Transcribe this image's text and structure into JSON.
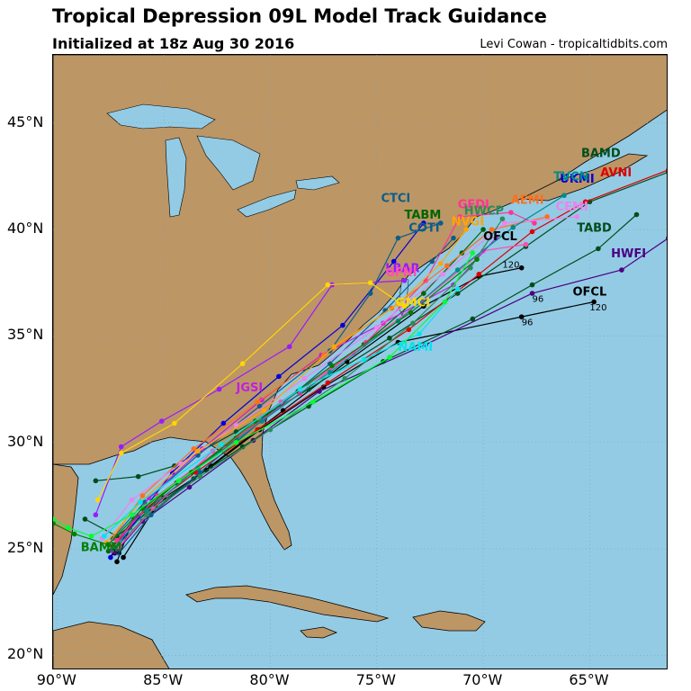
{
  "header": {
    "title": "Tropical Depression 09L Model Track Guidance",
    "subtitle": "Initialized at 18z Aug 30 2016",
    "credit": "Levi Cowan - tropicaltidbits.com"
  },
  "map": {
    "extent": {
      "lon_min": -90.2,
      "lon_max": -61.3,
      "lat_min": 19.3,
      "lat_max": 48.2
    },
    "colors": {
      "ocean": "#93cbe5",
      "land": "#bc9665",
      "lakes": "#93cbe5",
      "grid": "#7f9fb0"
    },
    "lat_ticks": [
      {
        "value": 45,
        "label": "45°N"
      },
      {
        "value": 40,
        "label": "40°N"
      },
      {
        "value": 35,
        "label": "35°N"
      },
      {
        "value": 30,
        "label": "30°N"
      },
      {
        "value": 25,
        "label": "25°N"
      },
      {
        "value": 20,
        "label": "20°N"
      }
    ],
    "lon_ticks": [
      {
        "value": -90,
        "label": "90°W"
      },
      {
        "value": -85,
        "label": "85°W"
      },
      {
        "value": -80,
        "label": "80°W"
      },
      {
        "value": -75,
        "label": "75°W"
      },
      {
        "value": -70,
        "label": "70°W"
      },
      {
        "value": -65,
        "label": "65°W"
      }
    ],
    "tracks": [
      {
        "name": "OFCL",
        "color": "#000000",
        "label_pos": [
          -65.8,
          36.9
        ],
        "points": [
          [
            -87.2,
            24.4
          ],
          [
            -86.6,
            26.0
          ],
          [
            -85.0,
            27.4
          ],
          [
            -83.0,
            28.7
          ],
          [
            -80.5,
            30.6
          ],
          [
            -77.5,
            32.6
          ],
          [
            -74.0,
            34.7
          ],
          [
            -68.2,
            35.9
          ],
          [
            -64.8,
            36.6
          ]
        ],
        "hours": [
          {
            "h": "24",
            "pos": [
              -87.5,
              24.7
            ]
          },
          {
            "h": "96",
            "pos": [
              -68.2,
              35.5
            ]
          },
          {
            "h": "120",
            "pos": [
              -65.0,
              36.2
            ]
          }
        ]
      },
      {
        "name": "OFCL",
        "color": "#000000",
        "label_pos": [
          -70.0,
          39.5
        ],
        "points": [
          [
            -86.9,
            24.6
          ],
          [
            -85.5,
            26.8
          ],
          [
            -82.8,
            28.9
          ],
          [
            -79.4,
            31.5
          ],
          [
            -76.4,
            33.8
          ],
          [
            -72.8,
            36.4
          ],
          [
            -70.2,
            37.8
          ],
          [
            -68.2,
            38.2
          ]
        ],
        "hours": [
          {
            "h": "120",
            "pos": [
              -69.1,
              38.2
            ]
          }
        ]
      },
      {
        "name": "HWFI",
        "color": "#4b0082",
        "label_pos": [
          -64.0,
          38.7
        ],
        "points": [
          [
            -87.3,
            24.8
          ],
          [
            -86.0,
            26.3
          ],
          [
            -83.8,
            27.9
          ],
          [
            -80.8,
            30.1
          ],
          [
            -77.7,
            32.4
          ],
          [
            -72.7,
            34.6
          ],
          [
            -67.7,
            37.0
          ],
          [
            -63.5,
            38.1
          ],
          [
            -61.3,
            39.6
          ]
        ],
        "hours": [
          {
            "h": "96",
            "pos": [
              -67.7,
              36.6
            ]
          }
        ]
      },
      {
        "name": "TABD",
        "color": "#004d1a",
        "label_pos": [
          -65.6,
          39.9
        ],
        "points": [
          [
            -88.7,
            26.4
          ],
          [
            -87.2,
            25.6
          ],
          [
            -85.4,
            27.0
          ],
          [
            -83.6,
            28.3
          ],
          [
            -81.3,
            29.8
          ],
          [
            -78.2,
            31.7
          ],
          [
            -74.7,
            33.8
          ],
          [
            -70.5,
            35.8
          ],
          [
            -67.7,
            37.4
          ],
          [
            -64.6,
            39.1
          ],
          [
            -62.8,
            40.7
          ]
        ]
      },
      {
        "name": "BAMD",
        "color": "#004d1a",
        "label_pos": [
          -65.4,
          43.4
        ],
        "points": [
          [
            -88.2,
            28.2
          ],
          [
            -86.2,
            28.4
          ],
          [
            -84.5,
            28.9
          ],
          [
            -81.6,
            30.5
          ],
          [
            -78.2,
            32.5
          ],
          [
            -74.4,
            34.9
          ],
          [
            -71.2,
            37.0
          ],
          [
            -68.0,
            39.2
          ],
          [
            -65.0,
            41.3
          ],
          [
            -61.3,
            42.7
          ]
        ]
      },
      {
        "name": "AVNI",
        "color": "#dd0000",
        "label_pos": [
          -64.5,
          42.5
        ],
        "points": [
          [
            -87.4,
            25.1
          ],
          [
            -85.9,
            26.8
          ],
          [
            -83.5,
            28.6
          ],
          [
            -80.6,
            30.6
          ],
          [
            -77.3,
            32.8
          ],
          [
            -73.5,
            35.3
          ],
          [
            -70.2,
            37.9
          ],
          [
            -67.7,
            39.9
          ],
          [
            -65.2,
            41.3
          ],
          [
            -61.3,
            42.8
          ]
        ]
      },
      {
        "name": "UKMI",
        "color": "#0000dd",
        "label_pos": [
          -66.4,
          42.2
        ],
        "points": [
          [
            -87.5,
            24.6
          ],
          [
            -86.2,
            26.5
          ],
          [
            -84.6,
            28.6
          ],
          [
            -82.2,
            30.9
          ],
          [
            -79.6,
            33.1
          ],
          [
            -76.6,
            35.5
          ],
          [
            -74.2,
            38.5
          ],
          [
            -72.8,
            40.3
          ]
        ]
      },
      {
        "name": "CTCI",
        "color": "#0b5d8a",
        "label_pos": [
          -74.8,
          41.3
        ],
        "points": [
          [
            -87.4,
            25.5
          ],
          [
            -85.9,
            27.2
          ],
          [
            -83.4,
            29.4
          ],
          [
            -80.5,
            31.7
          ],
          [
            -77.2,
            34.3
          ],
          [
            -75.3,
            37.0
          ],
          [
            -74.0,
            39.6
          ],
          [
            -72.0,
            40.3
          ]
        ]
      },
      {
        "name": "TABM",
        "color": "#006400",
        "label_pos": [
          -73.7,
          40.5
        ],
        "points": [
          [
            -87.6,
            24.9
          ],
          [
            -86.4,
            26.4
          ],
          [
            -84.4,
            28.1
          ],
          [
            -81.6,
            30.2
          ],
          [
            -78.7,
            32.4
          ],
          [
            -75.6,
            34.6
          ],
          [
            -72.8,
            37.0
          ],
          [
            -71.0,
            38.9
          ],
          [
            -70.0,
            40.0
          ]
        ]
      },
      {
        "name": "COTI",
        "color": "#0b5d8a",
        "label_pos": [
          -73.5,
          39.9
        ],
        "points": [
          [
            -87.1,
            24.8
          ],
          [
            -85.6,
            26.6
          ],
          [
            -83.3,
            28.6
          ],
          [
            -80.3,
            31.1
          ],
          [
            -77.2,
            33.7
          ],
          [
            -74.6,
            36.2
          ],
          [
            -72.4,
            38.5
          ],
          [
            -71.4,
            39.6
          ]
        ]
      },
      {
        "name": "LBAR",
        "color": "#9a1aff",
        "label_pos": [
          -74.6,
          38.0
        ],
        "points": [
          [
            -88.2,
            26.6
          ],
          [
            -87.0,
            29.8
          ],
          [
            -85.1,
            31.0
          ],
          [
            -82.4,
            32.5
          ],
          [
            -79.1,
            34.5
          ],
          [
            -77.1,
            37.4
          ],
          [
            -73.7,
            37.6
          ]
        ]
      },
      {
        "name": "GFNI",
        "color": "#ff4fb0",
        "label_pos": [
          -74.6,
          37.8
        ],
        "points": [
          [
            -87.1,
            25.1
          ],
          [
            -85.5,
            26.9
          ],
          [
            -82.7,
            29.6
          ],
          [
            -79.5,
            31.9
          ],
          [
            -76.1,
            34.2
          ],
          [
            -72.8,
            36.7
          ],
          [
            -70.0,
            39.0
          ],
          [
            -68.0,
            39.3
          ]
        ]
      },
      {
        "name": "JGSI",
        "color": "#c020e0",
        "label_pos": [
          -81.6,
          32.4
        ],
        "points": [
          [
            -87.4,
            24.9
          ],
          [
            -85.7,
            27.4
          ],
          [
            -83.2,
            29.7
          ],
          [
            -80.4,
            32.0
          ],
          [
            -77.6,
            34.1
          ],
          [
            -74.7,
            35.6
          ],
          [
            -71.4,
            37.4
          ],
          [
            -69.4,
            39.6
          ]
        ]
      },
      {
        "name": "GFDI",
        "color": "#ff3399",
        "label_pos": [
          -71.2,
          41.0
        ],
        "points": [
          [
            -87.2,
            25.4
          ],
          [
            -85.3,
            27.5
          ],
          [
            -82.2,
            29.8
          ],
          [
            -78.6,
            32.3
          ],
          [
            -75.5,
            34.7
          ],
          [
            -72.7,
            37.6
          ],
          [
            -71.1,
            40.6
          ],
          [
            -68.7,
            40.8
          ],
          [
            -67.6,
            40.3
          ]
        ]
      },
      {
        "name": "AEMI",
        "color": "#ff6f1a",
        "label_pos": [
          -68.7,
          41.2
        ],
        "points": [
          [
            -87.6,
            25.2
          ],
          [
            -86.0,
            27.5
          ],
          [
            -83.6,
            29.7
          ],
          [
            -80.6,
            31.9
          ],
          [
            -77.5,
            34.1
          ],
          [
            -74.3,
            36.3
          ],
          [
            -71.7,
            38.3
          ],
          [
            -69.6,
            40.0
          ],
          [
            -67.0,
            40.6
          ]
        ]
      },
      {
        "name": "CEMI",
        "color": "#ee82ee",
        "label_pos": [
          -66.6,
          40.9
        ],
        "points": [
          [
            -87.9,
            25.5
          ],
          [
            -86.5,
            27.3
          ],
          [
            -84.2,
            29.0
          ],
          [
            -81.6,
            30.8
          ],
          [
            -78.4,
            33.0
          ],
          [
            -75.0,
            35.4
          ],
          [
            -71.9,
            37.9
          ],
          [
            -69.0,
            40.3
          ],
          [
            -65.6,
            40.6
          ]
        ]
      },
      {
        "name": "NVGI",
        "color": "#ffa500",
        "label_pos": [
          -71.5,
          40.2
        ],
        "points": [
          [
            -87.7,
            25.3
          ],
          [
            -86.1,
            27.2
          ],
          [
            -83.4,
            29.6
          ],
          [
            -80.3,
            31.5
          ],
          [
            -77.0,
            34.5
          ],
          [
            -74.0,
            36.5
          ],
          [
            -72.0,
            38.4
          ],
          [
            -70.8,
            40.0
          ]
        ]
      },
      {
        "name": "HWCP",
        "color": "#2e8b57",
        "label_pos": [
          -70.9,
          40.7
        ],
        "points": [
          [
            -87.3,
            25.0
          ],
          [
            -85.8,
            26.6
          ],
          [
            -83.3,
            28.4
          ],
          [
            -80.0,
            30.6
          ],
          [
            -76.5,
            33.0
          ],
          [
            -73.3,
            35.6
          ],
          [
            -70.6,
            38.2
          ],
          [
            -69.1,
            40.5
          ]
        ]
      },
      {
        "name": "GMCI",
        "color": "#ffd700",
        "label_pos": [
          -74.1,
          36.4
        ],
        "points": [
          [
            -88.1,
            27.3
          ],
          [
            -87.0,
            29.5
          ],
          [
            -84.5,
            30.9
          ],
          [
            -81.3,
            33.7
          ],
          [
            -77.3,
            37.4
          ],
          [
            -75.3,
            37.5
          ],
          [
            -73.7,
            36.4
          ]
        ]
      },
      {
        "name": "TVCN",
        "color": "#008b8b",
        "label_pos": [
          -66.7,
          42.3
        ],
        "points": [
          [
            -87.4,
            25.0
          ],
          [
            -85.8,
            26.8
          ],
          [
            -83.4,
            28.8
          ],
          [
            -80.4,
            31.0
          ],
          [
            -77.2,
            33.3
          ],
          [
            -74.0,
            35.7
          ],
          [
            -71.2,
            38.1
          ],
          [
            -68.6,
            40.1
          ],
          [
            -66.2,
            41.6
          ]
        ]
      },
      {
        "name": "BAMM",
        "color": "#008000",
        "label_pos": [
          -88.9,
          24.9
        ],
        "points": [
          [
            -90.2,
            26.2
          ],
          [
            -89.2,
            25.7
          ],
          [
            -87.6,
            25.2
          ],
          [
            -86.0,
            26.9
          ],
          [
            -83.7,
            28.6
          ],
          [
            -80.7,
            31.0
          ],
          [
            -77.1,
            33.6
          ],
          [
            -73.4,
            36.1
          ],
          [
            -70.3,
            38.6
          ]
        ]
      },
      {
        "name": "NAMI",
        "color": "#00e5ee",
        "label_pos": [
          -74.0,
          34.3
        ],
        "points": [
          [
            -87.8,
            25.6
          ],
          [
            -86.1,
            27.2
          ],
          [
            -82.3,
            29.9
          ],
          [
            -78.6,
            32.5
          ],
          [
            -75.6,
            33.9
          ],
          [
            -73.0,
            35.1
          ],
          [
            -71.2,
            37.2
          ]
        ]
      },
      {
        "name": "",
        "color": "#00ff33",
        "label_pos": [
          -70.5,
          39.3
        ],
        "points": [
          [
            -90.2,
            26.4
          ],
          [
            -89.5,
            26.0
          ],
          [
            -88.4,
            25.6
          ],
          [
            -86.5,
            26.6
          ],
          [
            -84.3,
            28.2
          ],
          [
            -81.6,
            30.0
          ],
          [
            -78.0,
            31.9
          ],
          [
            -74.4,
            34.0
          ],
          [
            -71.8,
            36.6
          ],
          [
            -70.5,
            38.9
          ]
        ]
      }
    ]
  }
}
